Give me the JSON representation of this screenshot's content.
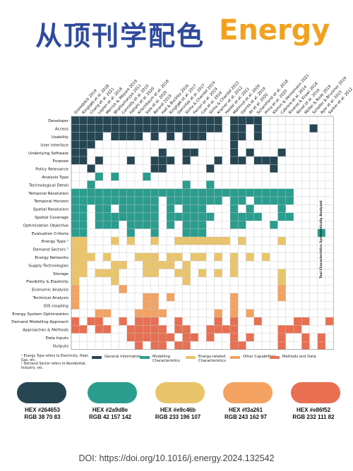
{
  "header": {
    "title_cn": "从顶刊学配色",
    "title_en": "Energy"
  },
  "chart_data": {
    "type": "heatmap",
    "columns": [
      "Groissböck 2019",
      "Ringkjøb et al. 2018",
      "Chang et al. 2021",
      "Lopion et al. 2018",
      "Merrick & Weyant 2019",
      "Bhattacharyya 2011",
      "Connolly et al. 2010",
      "Fattahi et al. 2020",
      "Kriechbaum et al. 2018",
      "Sola et al. 2020",
      "Berardi 2019",
      "Hall & Buckley 2016",
      "Ringkjøb et al. 2017",
      "Demirtas et al. 2017",
      "Sinha & Chandel 2014",
      "Ferrari et al. 2019",
      "Cao et al. 2016",
      "Sinha & Chandel 2015",
      "Kramer et al. 2012",
      "Heider et al. 2021",
      "Mahmud et al. 2020",
      "Gerrits et al. 2019",
      "Ali et al. 2020",
      "Scharnhorst et al. 2018",
      "Prina et al. 2020",
      "Klemm & Vennemann 2021",
      "Cabrera et al. 2014",
      "Riveros & Kraan 2018",
      "Novel et al. 2016",
      "Müller & Rode 2019",
      "Scheller & Bruckner 2019",
      "Ayar et al. 2015",
      "Sarker et al. 2012"
    ],
    "rows": [
      {
        "label": "Developer",
        "category": "general",
        "cells": [
          1,
          1,
          1,
          1,
          1,
          1,
          1,
          1,
          1,
          1,
          1,
          1,
          1,
          1,
          1,
          1,
          1,
          1,
          1,
          0,
          1,
          1,
          1,
          1,
          0,
          0,
          0,
          0,
          0,
          0,
          0,
          0,
          0
        ]
      },
      {
        "label": "Access",
        "category": "general",
        "cells": [
          1,
          1,
          1,
          1,
          1,
          1,
          1,
          1,
          1,
          1,
          1,
          1,
          1,
          1,
          1,
          1,
          1,
          1,
          1,
          0,
          1,
          1,
          0,
          1,
          0,
          0,
          0,
          0,
          0,
          0,
          1,
          0,
          0
        ]
      },
      {
        "label": "Usability",
        "category": "general",
        "cells": [
          1,
          1,
          1,
          1,
          0,
          1,
          1,
          1,
          1,
          0,
          1,
          0,
          1,
          0,
          1,
          1,
          1,
          0,
          0,
          0,
          1,
          1,
          0,
          1,
          0,
          0,
          0,
          0,
          0,
          0,
          0,
          0,
          0
        ]
      },
      {
        "label": "User Interface",
        "category": "general",
        "cells": [
          1,
          1,
          1,
          0,
          0,
          0,
          0,
          0,
          0,
          0,
          0,
          0,
          0,
          0,
          0,
          0,
          0,
          0,
          0,
          0,
          1,
          0,
          0,
          0,
          0,
          0,
          0,
          0,
          0,
          0,
          0,
          0,
          0
        ]
      },
      {
        "label": "Underlying Software",
        "category": "general",
        "cells": [
          1,
          1,
          0,
          0,
          0,
          0,
          0,
          0,
          0,
          0,
          0,
          1,
          0,
          0,
          1,
          1,
          0,
          0,
          0,
          0,
          1,
          0,
          1,
          0,
          0,
          0,
          1,
          0,
          0,
          0,
          0,
          0,
          0
        ]
      },
      {
        "label": "Purpose",
        "category": "general",
        "cells": [
          1,
          1,
          0,
          1,
          0,
          0,
          0,
          1,
          0,
          0,
          1,
          1,
          1,
          0,
          1,
          0,
          0,
          0,
          1,
          0,
          1,
          1,
          0,
          1,
          1,
          1,
          0,
          0,
          0,
          0,
          0,
          0,
          0
        ]
      },
      {
        "label": "Policy Relevance",
        "category": "general",
        "cells": [
          0,
          0,
          1,
          0,
          0,
          0,
          0,
          0,
          0,
          0,
          1,
          1,
          0,
          0,
          0,
          0,
          0,
          1,
          0,
          0,
          0,
          0,
          0,
          0,
          0,
          1,
          0,
          0,
          0,
          0,
          0,
          0,
          0
        ]
      },
      {
        "label": "Analysis Type",
        "category": "modelling",
        "cells": [
          0,
          0,
          0,
          1,
          0,
          1,
          0,
          0,
          0,
          1,
          0,
          0,
          0,
          0,
          0,
          0,
          0,
          0,
          0,
          0,
          0,
          0,
          0,
          0,
          0,
          0,
          0,
          0,
          0,
          0,
          0,
          0,
          0
        ]
      },
      {
        "label": "Technological Detail",
        "category": "modelling",
        "cells": [
          0,
          0,
          1,
          0,
          0,
          0,
          0,
          0,
          0,
          0,
          0,
          0,
          0,
          0,
          1,
          0,
          0,
          1,
          0,
          0,
          0,
          0,
          0,
          0,
          0,
          0,
          0,
          0,
          0,
          0,
          0,
          0,
          0
        ]
      },
      {
        "label": "Temporal Resolution",
        "category": "modelling",
        "cells": [
          1,
          1,
          1,
          1,
          1,
          1,
          1,
          1,
          1,
          1,
          1,
          1,
          1,
          1,
          1,
          1,
          1,
          1,
          1,
          1,
          1,
          1,
          1,
          1,
          1,
          1,
          1,
          1,
          0,
          0,
          0,
          0,
          0
        ]
      },
      {
        "label": "Temporal Horizon",
        "category": "modelling",
        "cells": [
          1,
          1,
          1,
          1,
          1,
          1,
          1,
          1,
          1,
          1,
          1,
          0,
          1,
          1,
          1,
          1,
          1,
          1,
          1,
          0,
          1,
          1,
          0,
          1,
          1,
          1,
          1,
          1,
          0,
          0,
          0,
          0,
          0
        ]
      },
      {
        "label": "Spatial Resolution",
        "category": "modelling",
        "cells": [
          1,
          1,
          0,
          1,
          1,
          0,
          1,
          1,
          1,
          1,
          1,
          0,
          1,
          0,
          1,
          1,
          1,
          0,
          0,
          0,
          1,
          0,
          1,
          0,
          0,
          0,
          1,
          0,
          0,
          0,
          0,
          0,
          0
        ]
      },
      {
        "label": "Spatial Coverage",
        "category": "modelling",
        "cells": [
          1,
          1,
          0,
          1,
          1,
          1,
          1,
          1,
          1,
          1,
          1,
          0,
          1,
          1,
          1,
          1,
          1,
          1,
          0,
          0,
          1,
          1,
          1,
          1,
          0,
          0,
          1,
          1,
          0,
          0,
          0,
          0,
          0
        ]
      },
      {
        "label": "Optimization Objective",
        "category": "modelling",
        "cells": [
          1,
          1,
          0,
          1,
          1,
          1,
          0,
          1,
          1,
          1,
          1,
          0,
          1,
          0,
          1,
          1,
          1,
          0,
          0,
          0,
          1,
          1,
          0,
          0,
          0,
          1,
          0,
          0,
          0,
          0,
          0,
          0,
          0
        ]
      },
      {
        "label": "Evaluation Criteria",
        "category": "modelling",
        "cells": [
          1,
          1,
          0,
          0,
          0,
          0,
          0,
          1,
          0,
          0,
          1,
          0,
          0,
          0,
          1,
          1,
          1,
          0,
          0,
          0,
          0,
          0,
          0,
          0,
          0,
          0,
          0,
          0,
          0,
          0,
          0,
          1,
          0
        ]
      },
      {
        "label": "Energy Type ¹",
        "category": "energy",
        "cells": [
          1,
          1,
          0,
          0,
          0,
          1,
          0,
          1,
          0,
          0,
          1,
          0,
          0,
          1,
          1,
          1,
          1,
          1,
          1,
          1,
          0,
          1,
          0,
          0,
          0,
          0,
          1,
          0,
          0,
          0,
          0,
          0,
          0
        ]
      },
      {
        "label": "Demand Sectors ²",
        "category": "energy",
        "cells": [
          1,
          1,
          0,
          0,
          0,
          0,
          0,
          0,
          0,
          0,
          0,
          0,
          0,
          0,
          0,
          0,
          0,
          0,
          0,
          0,
          0,
          0,
          0,
          0,
          0,
          0,
          0,
          0,
          0,
          0,
          0,
          0,
          0
        ]
      },
      {
        "label": "Energy Networks",
        "category": "energy",
        "cells": [
          1,
          1,
          1,
          0,
          1,
          0,
          0,
          0,
          1,
          1,
          1,
          0,
          1,
          1,
          0,
          1,
          1,
          0,
          1,
          0,
          1,
          0,
          1,
          0,
          1,
          0,
          0,
          0,
          0,
          0,
          0,
          0,
          0
        ]
      },
      {
        "label": "Supply Technologies",
        "category": "energy",
        "cells": [
          1,
          1,
          0,
          0,
          0,
          1,
          1,
          0,
          0,
          1,
          1,
          1,
          1,
          0,
          1,
          0,
          0,
          0,
          0,
          0,
          1,
          0,
          0,
          0,
          0,
          0,
          0,
          0,
          0,
          0,
          0,
          0,
          0
        ]
      },
      {
        "label": "Storage",
        "category": "energy",
        "cells": [
          1,
          1,
          0,
          1,
          1,
          1,
          0,
          0,
          0,
          1,
          1,
          0,
          0,
          1,
          1,
          0,
          1,
          0,
          1,
          0,
          1,
          0,
          0,
          0,
          0,
          0,
          1,
          0,
          0,
          0,
          0,
          0,
          0
        ]
      },
      {
        "label": "Flexibility & Elasticity",
        "category": "energy",
        "cells": [
          1,
          0,
          0,
          0,
          0,
          1,
          0,
          0,
          0,
          0,
          0,
          0,
          0,
          0,
          1,
          0,
          0,
          0,
          0,
          0,
          0,
          0,
          0,
          0,
          0,
          0,
          1,
          0,
          0,
          0,
          0,
          0,
          0
        ]
      },
      {
        "label": "Economic Analysis",
        "category": "other",
        "cells": [
          1,
          0,
          0,
          0,
          0,
          0,
          1,
          0,
          0,
          0,
          0,
          0,
          0,
          0,
          0,
          0,
          0,
          0,
          0,
          0,
          0,
          0,
          0,
          0,
          0,
          0,
          1,
          0,
          0,
          0,
          0,
          0,
          0
        ]
      },
      {
        "label": "Technical Analysis",
        "category": "other",
        "cells": [
          1,
          0,
          0,
          0,
          0,
          0,
          0,
          0,
          0,
          1,
          1,
          0,
          1,
          0,
          0,
          0,
          0,
          0,
          0,
          0,
          1,
          0,
          0,
          0,
          0,
          0,
          1,
          0,
          0,
          0,
          0,
          0,
          0
        ]
      },
      {
        "label": "GIS coupling",
        "category": "other",
        "cells": [
          1,
          0,
          0,
          0,
          0,
          0,
          0,
          0,
          0,
          1,
          1,
          0,
          0,
          0,
          0,
          0,
          0,
          0,
          0,
          0,
          1,
          0,
          0,
          0,
          0,
          0,
          0,
          0,
          0,
          0,
          0,
          0,
          0
        ]
      },
      {
        "label": "Energy System Optimization",
        "category": "other",
        "cells": [
          0,
          0,
          0,
          1,
          1,
          0,
          0,
          0,
          1,
          1,
          1,
          1,
          0,
          0,
          0,
          0,
          0,
          0,
          1,
          0,
          1,
          0,
          1,
          0,
          0,
          0,
          0,
          0,
          0,
          0,
          0,
          0,
          0
        ]
      },
      {
        "label": "Demand Modelling Approach",
        "category": "methods",
        "cells": [
          1,
          0,
          1,
          1,
          0,
          0,
          1,
          0,
          1,
          1,
          1,
          0,
          0,
          1,
          0,
          0,
          0,
          0,
          1,
          0,
          1,
          0,
          0,
          1,
          0,
          0,
          0,
          0,
          1,
          1,
          0,
          0,
          1
        ]
      },
      {
        "label": "Approaches & Methods",
        "category": "methods",
        "cells": [
          1,
          1,
          0,
          1,
          1,
          0,
          0,
          1,
          1,
          1,
          1,
          1,
          0,
          1,
          1,
          0,
          0,
          1,
          1,
          1,
          1,
          0,
          0,
          0,
          0,
          0,
          1,
          1,
          1,
          0,
          0,
          0,
          0
        ]
      },
      {
        "label": "Data Inputs",
        "category": "methods",
        "cells": [
          0,
          0,
          0,
          0,
          0,
          0,
          0,
          1,
          1,
          1,
          1,
          1,
          1,
          0,
          1,
          1,
          0,
          1,
          0,
          0,
          1,
          0,
          1,
          0,
          0,
          0,
          1,
          0,
          0,
          1,
          0,
          1,
          0
        ]
      },
      {
        "label": "Outputs",
        "category": "methods",
        "cells": [
          0,
          0,
          0,
          0,
          0,
          0,
          0,
          0,
          1,
          0,
          1,
          1,
          0,
          1,
          1,
          0,
          0,
          0,
          0,
          0,
          1,
          1,
          0,
          0,
          0,
          0,
          1,
          0,
          0,
          1,
          0,
          1,
          0
        ]
      }
    ],
    "categories": [
      {
        "key": "general",
        "label": "General Information",
        "color": "#264653"
      },
      {
        "key": "modelling",
        "label": "Modelling Characteristics",
        "color": "#2a9d8e"
      },
      {
        "key": "energy",
        "label": "Energy-related Characteristics",
        "color": "#e9c46b"
      },
      {
        "key": "other",
        "label": "Other Capabilities",
        "color": "#f3a261"
      },
      {
        "key": "methods",
        "label": "Methods and Data",
        "color": "#e86f52"
      }
    ],
    "side_label": "Tool Characteristics Systematically Analyzed",
    "footnotes": [
      "¹ Energy Type refers to Electricity, Heat, Gas, etc.",
      "² Demand Sector refers to Residential, Industry, etc."
    ]
  },
  "palette": [
    {
      "hex": "HEX #264653",
      "rgb": "RGB 38 70 83",
      "color": "#264653"
    },
    {
      "hex": "HEX #2a9d8e",
      "rgb": "RGB 42 157 142",
      "color": "#2a9d8e"
    },
    {
      "hex": "HEX #e9c46b",
      "rgb": "RGB 233 196 107",
      "color": "#e9c46b"
    },
    {
      "hex": "HEX #f3a261",
      "rgb": "RGB 243 162 97",
      "color": "#f3a261"
    },
    {
      "hex": "HEX #e86f52",
      "rgb": "RGB 232 111 82",
      "color": "#e86f52"
    }
  ],
  "footer": {
    "doi": "DOI: https://doi.org/10.1016/j.energy.2024.132542"
  }
}
